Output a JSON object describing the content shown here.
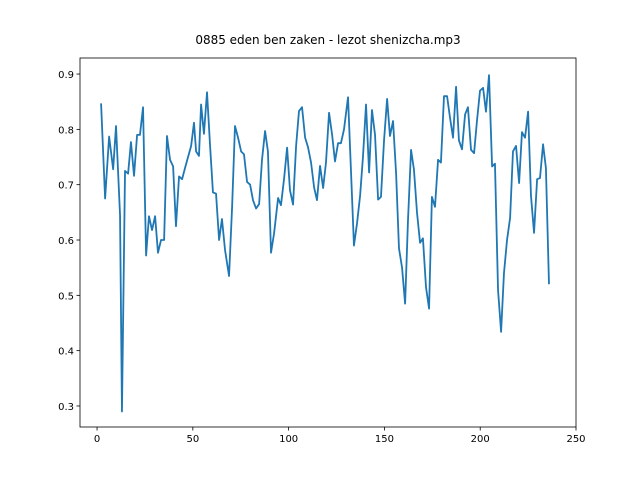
{
  "chart_data": {
    "type": "line",
    "title": "0885 eden ben zaken - lezot shenizcha.mp3",
    "color": "#1f77b4",
    "x": [
      2.1,
      4.2,
      6.3,
      8.4,
      9.9,
      12.0,
      13.0,
      14.6,
      16.2,
      17.7,
      19.3,
      20.9,
      22.4,
      24.0,
      25.6,
      27.1,
      28.7,
      30.3,
      31.8,
      33.4,
      35.0,
      36.5,
      38.1,
      39.7,
      41.2,
      42.8,
      44.4,
      45.9,
      47.5,
      49.1,
      50.6,
      51.7,
      53.2,
      54.3,
      55.8,
      57.4,
      59.0,
      60.5,
      62.1,
      63.7,
      65.2,
      66.8,
      68.9,
      70.5,
      72.0,
      73.6,
      75.2,
      76.7,
      78.3,
      79.9,
      81.4,
      83.0,
      84.6,
      86.1,
      87.7,
      89.2,
      90.8,
      92.4,
      94.5,
      96.0,
      97.6,
      99.2,
      100.7,
      102.3,
      103.9,
      105.4,
      107.0,
      108.6,
      110.1,
      111.7,
      113.3,
      114.8,
      116.4,
      118.0,
      119.5,
      121.1,
      122.7,
      124.2,
      125.8,
      127.3,
      128.9,
      131.0,
      132.6,
      134.1,
      135.7,
      137.3,
      138.8,
      140.4,
      142.0,
      143.5,
      145.1,
      146.7,
      148.2,
      149.8,
      151.4,
      152.9,
      154.5,
      156.1,
      157.6,
      159.2,
      160.8,
      162.3,
      163.9,
      165.4,
      167.0,
      168.6,
      170.1,
      171.7,
      173.3,
      174.8,
      176.4,
      178.0,
      179.5,
      181.1,
      182.7,
      184.2,
      185.8,
      187.4,
      188.9,
      190.5,
      192.1,
      193.6,
      195.2,
      196.8,
      198.3,
      199.9,
      201.5,
      203.0,
      204.6,
      206.2,
      207.7,
      209.3,
      210.9,
      212.4,
      214.0,
      215.6,
      217.1,
      218.7,
      220.3,
      221.8,
      223.4,
      225.0,
      226.5,
      228.1,
      229.7,
      231.2,
      232.8,
      234.3,
      235.9
    ],
    "values": [
      0.847,
      0.675,
      0.787,
      0.728,
      0.806,
      0.645,
      0.29,
      0.725,
      0.72,
      0.777,
      0.716,
      0.79,
      0.79,
      0.84,
      0.572,
      0.643,
      0.618,
      0.643,
      0.577,
      0.6,
      0.6,
      0.788,
      0.745,
      0.733,
      0.625,
      0.715,
      0.71,
      0.73,
      0.75,
      0.77,
      0.812,
      0.76,
      0.752,
      0.845,
      0.792,
      0.867,
      0.77,
      0.686,
      0.684,
      0.6,
      0.638,
      0.582,
      0.535,
      0.66,
      0.806,
      0.785,
      0.76,
      0.755,
      0.705,
      0.7,
      0.672,
      0.657,
      0.665,
      0.745,
      0.797,
      0.76,
      0.577,
      0.612,
      0.676,
      0.663,
      0.71,
      0.767,
      0.69,
      0.664,
      0.77,
      0.833,
      0.84,
      0.785,
      0.768,
      0.74,
      0.695,
      0.672,
      0.734,
      0.694,
      0.74,
      0.83,
      0.79,
      0.742,
      0.775,
      0.775,
      0.8,
      0.858,
      0.72,
      0.59,
      0.63,
      0.68,
      0.75,
      0.845,
      0.722,
      0.835,
      0.79,
      0.673,
      0.678,
      0.78,
      0.855,
      0.788,
      0.815,
      0.72,
      0.585,
      0.55,
      0.485,
      0.635,
      0.763,
      0.728,
      0.65,
      0.595,
      0.603,
      0.515,
      0.476,
      0.678,
      0.66,
      0.745,
      0.74,
      0.86,
      0.86,
      0.822,
      0.785,
      0.877,
      0.78,
      0.764,
      0.827,
      0.84,
      0.763,
      0.757,
      0.815,
      0.87,
      0.875,
      0.832,
      0.898,
      0.733,
      0.738,
      0.51,
      0.434,
      0.54,
      0.6,
      0.64,
      0.76,
      0.77,
      0.703,
      0.795,
      0.785,
      0.832,
      0.68,
      0.613,
      0.71,
      0.712,
      0.773,
      0.73,
      0.52
    ],
    "xlim": [
      -8.9,
      250
    ],
    "ylim": [
      0.262,
      0.929
    ],
    "xticks": [
      0,
      50,
      100,
      150,
      200,
      250
    ],
    "yticks": [
      0.3,
      0.4,
      0.5,
      0.6,
      0.7,
      0.8,
      0.9
    ]
  }
}
